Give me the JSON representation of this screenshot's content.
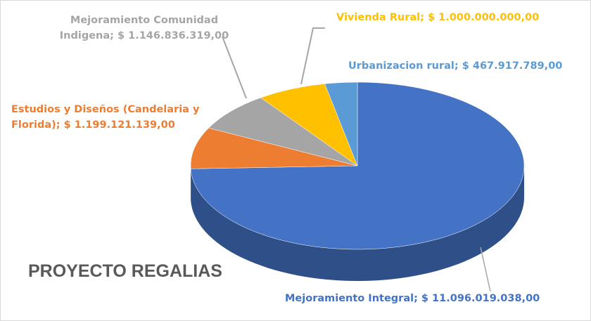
{
  "chart_data": {
    "type": "pie",
    "title": "PROYECTO REGALIAS",
    "values": [
      11096019038,
      1199121139,
      1146836319,
      1000000000,
      467917789
    ],
    "value_labels": [
      "Mejoramiento Integral; $ 11.096.019.038,00",
      "Estudios y Diseños (Candelaria y Florida); $ 1.199.121.139,00",
      "Mejoramiento Comunidad Indigena; $ 1.146.836.319,00",
      "Vivienda Rural; $ 1.000.000.000,00",
      "Urbanizacion rural; $ 467.917.789,00"
    ],
    "colors": [
      "#4472c4",
      "#ed7d31",
      "#a5a5a5",
      "#ffc000",
      "#5b9bd5"
    ]
  }
}
